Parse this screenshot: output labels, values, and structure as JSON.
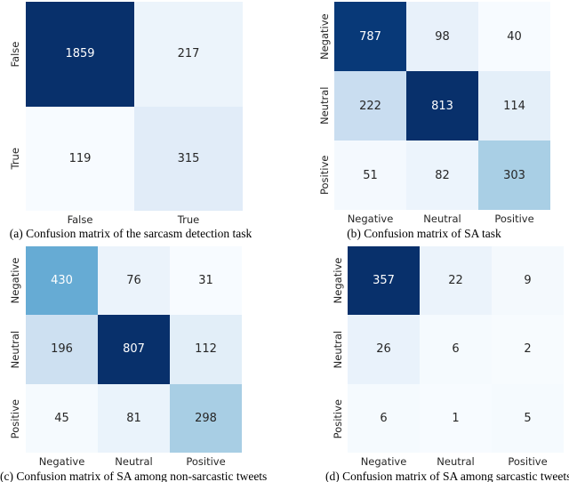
{
  "figure": {
    "background": "#ffffff",
    "colormap": "Blues",
    "annotation_dark_text": "#262626",
    "annotation_light_text": "#ffffff",
    "max_color": "#08306b",
    "min_color": "#f7fbff"
  },
  "panels": [
    {
      "id": "a",
      "caption": "(a) Confusion matrix of the sarcasm detection task",
      "row_labels": [
        "False",
        "True"
      ],
      "col_labels": [
        "False",
        "True"
      ],
      "cells": [
        [
          {
            "v": "1859",
            "bg": "#08306b",
            "fg": "#ffffff"
          },
          {
            "v": "217",
            "bg": "#ecf4fb",
            "fg": "#262626"
          }
        ],
        [
          {
            "v": "119",
            "bg": "#f7fbff",
            "fg": "#262626"
          },
          {
            "v": "315",
            "bg": "#e1ecf8",
            "fg": "#262626"
          }
        ]
      ]
    },
    {
      "id": "b",
      "caption": "(b) Confusion matrix of SA task",
      "row_labels": [
        "Negative",
        "Neutral",
        "Positive"
      ],
      "col_labels": [
        "Negative",
        "Neutral",
        "Positive"
      ],
      "cells": [
        [
          {
            "v": "787",
            "bg": "#083978",
            "fg": "#ffffff"
          },
          {
            "v": "98",
            "bg": "#e8f1fa",
            "fg": "#262626"
          },
          {
            "v": "40",
            "bg": "#f7fbff",
            "fg": "#262626"
          }
        ],
        [
          {
            "v": "222",
            "bg": "#c9ddf0",
            "fg": "#262626"
          },
          {
            "v": "813",
            "bg": "#08306b",
            "fg": "#ffffff"
          },
          {
            "v": "114",
            "bg": "#e4eff9",
            "fg": "#262626"
          }
        ],
        [
          {
            "v": "51",
            "bg": "#f4f9fe",
            "fg": "#262626"
          },
          {
            "v": "82",
            "bg": "#ecf4fc",
            "fg": "#262626"
          },
          {
            "v": "303",
            "bg": "#a9cfe5",
            "fg": "#262626"
          }
        ]
      ]
    },
    {
      "id": "c",
      "caption": "(c) Confusion matrix of SA among non-sarcastic tweets",
      "row_labels": [
        "Negative",
        "Neutral",
        "Positive"
      ],
      "col_labels": [
        "Negative",
        "Neutral",
        "Positive"
      ],
      "cells": [
        [
          {
            "v": "430",
            "bg": "#66abd4",
            "fg": "#ffffff"
          },
          {
            "v": "76",
            "bg": "#ebf3fb",
            "fg": "#262626"
          },
          {
            "v": "31",
            "bg": "#f7fbff",
            "fg": "#262626"
          }
        ],
        [
          {
            "v": "196",
            "bg": "#cde0f1",
            "fg": "#262626"
          },
          {
            "v": "807",
            "bg": "#08306b",
            "fg": "#ffffff"
          },
          {
            "v": "112",
            "bg": "#e2eef8",
            "fg": "#262626"
          }
        ],
        [
          {
            "v": "45",
            "bg": "#f5fafe",
            "fg": "#262626"
          },
          {
            "v": "81",
            "bg": "#eaf3fb",
            "fg": "#262626"
          },
          {
            "v": "298",
            "bg": "#a8cee4",
            "fg": "#262626"
          }
        ]
      ]
    },
    {
      "id": "d",
      "caption": "(d) Confusion matrix of SA among sarcastic tweets",
      "row_labels": [
        "Negative",
        "Neutral",
        "Positive"
      ],
      "col_labels": [
        "Negative",
        "Neutral",
        "Positive"
      ],
      "cells": [
        [
          {
            "v": "357",
            "bg": "#08306b",
            "fg": "#ffffff"
          },
          {
            "v": "22",
            "bg": "#ebf3fb",
            "fg": "#262626"
          },
          {
            "v": "9",
            "bg": "#f4f9fd",
            "fg": "#262626"
          }
        ],
        [
          {
            "v": "26",
            "bg": "#e9f2fb",
            "fg": "#262626"
          },
          {
            "v": "6",
            "bg": "#f5fafe",
            "fg": "#262626"
          },
          {
            "v": "2",
            "bg": "#f7fbfe",
            "fg": "#262626"
          }
        ],
        [
          {
            "v": "6",
            "bg": "#f5fafe",
            "fg": "#262626"
          },
          {
            "v": "1",
            "bg": "#f7fbff",
            "fg": "#262626"
          },
          {
            "v": "5",
            "bg": "#f5fafe",
            "fg": "#262626"
          }
        ]
      ]
    }
  ],
  "chart_data": [
    {
      "type": "heatmap",
      "title": "(a) Confusion matrix of the sarcasm detection task",
      "x_labels": [
        "False",
        "True"
      ],
      "y_labels": [
        "False",
        "True"
      ],
      "values": [
        [
          1859,
          217
        ],
        [
          119,
          315
        ]
      ],
      "colormap": "Blues",
      "annotations": true,
      "colorbar": false
    },
    {
      "type": "heatmap",
      "title": "(b) Confusion matrix of SA task",
      "x_labels": [
        "Negative",
        "Neutral",
        "Positive"
      ],
      "y_labels": [
        "Negative",
        "Neutral",
        "Positive"
      ],
      "values": [
        [
          787,
          98,
          40
        ],
        [
          222,
          813,
          114
        ],
        [
          51,
          82,
          303
        ]
      ],
      "colormap": "Blues",
      "annotations": true,
      "colorbar": false
    },
    {
      "type": "heatmap",
      "title": "(c) Confusion matrix of SA among non-sarcastic tweets",
      "x_labels": [
        "Negative",
        "Neutral",
        "Positive"
      ],
      "y_labels": [
        "Negative",
        "Neutral",
        "Positive"
      ],
      "values": [
        [
          430,
          76,
          31
        ],
        [
          196,
          807,
          112
        ],
        [
          45,
          81,
          298
        ]
      ],
      "colormap": "Blues",
      "annotations": true,
      "colorbar": false
    },
    {
      "type": "heatmap",
      "title": "(d) Confusion matrix of SA among sarcastic tweets",
      "x_labels": [
        "Negative",
        "Neutral",
        "Positive"
      ],
      "y_labels": [
        "Negative",
        "Neutral",
        "Positive"
      ],
      "values": [
        [
          357,
          22,
          9
        ],
        [
          26,
          6,
          2
        ],
        [
          6,
          1,
          5
        ]
      ],
      "colormap": "Blues",
      "annotations": true,
      "colorbar": false
    }
  ]
}
